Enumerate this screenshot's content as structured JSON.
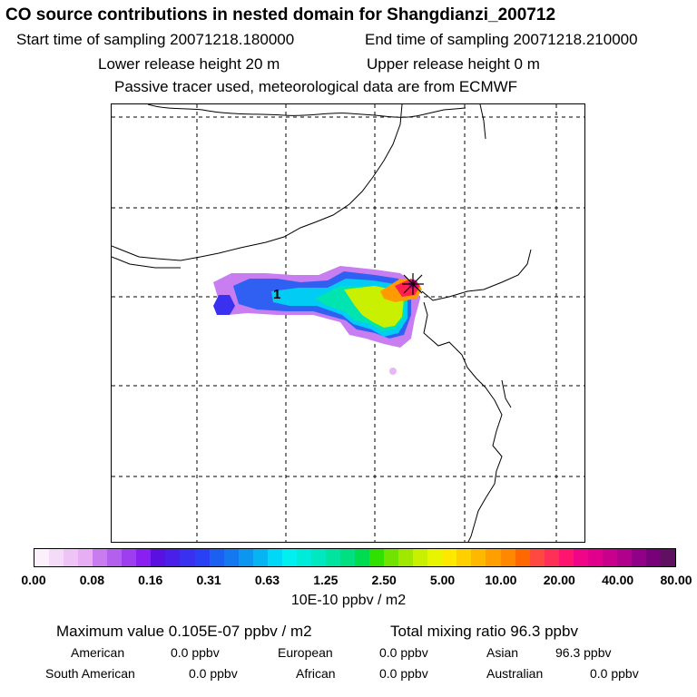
{
  "header": {
    "title": "CO  source contributions in nested domain for Shangdianzi_200712",
    "start": "Start time of sampling 20071218.180000",
    "end": "End time of sampling 20071218.210000",
    "lower": "Lower release height   20 m",
    "upper": "Upper release height    0 m",
    "passive": "Passive tracer used, meteorological data are from ECMWF"
  },
  "map": {
    "marker_label": "1"
  },
  "colorbar": {
    "ticks": [
      "0.00",
      "0.08",
      "0.16",
      "0.31",
      "0.63",
      "1.25",
      "2.50",
      "5.00",
      "10.00",
      "20.00",
      "40.00",
      "80.00"
    ],
    "colors": [
      "#fcf0fc",
      "#f4dcf8",
      "#eec4f6",
      "#e8aef4",
      "#c97cf0",
      "#b360ee",
      "#9d3ff0",
      "#8a1ff2",
      "#5a10e0",
      "#4a20e8",
      "#3a30f0",
      "#2a40f4",
      "#1c60f2",
      "#1478f0",
      "#0c96f0",
      "#06b4f4",
      "#00d8f8",
      "#00f0f0",
      "#00ecd8",
      "#00e8c0",
      "#00e4a0",
      "#00e080",
      "#00dc50",
      "#30e000",
      "#70e400",
      "#a0e800",
      "#c8f000",
      "#e8f400",
      "#ffe800",
      "#ffd000",
      "#ffb800",
      "#ffa000",
      "#ff8800",
      "#ff6800",
      "#ff4840",
      "#ff3058",
      "#ff1470",
      "#f00488",
      "#e0008c",
      "#c8008c",
      "#b0008c",
      "#900088",
      "#780078",
      "#601060"
    ],
    "unit": "10E-10 ppbv / m2"
  },
  "summary": {
    "maximum": "Maximum value  0.105E-07 ppbv / m2",
    "total": "Total mixing ratio      96.3 ppbv",
    "american_label": "American",
    "american_value": "0.0 ppbv",
    "european_label": "European",
    "european_value": "0.0 ppbv",
    "asian_label": "Asian",
    "asian_value": "96.3 ppbv",
    "south_american_label": "South American",
    "south_american_value": "0.0 ppbv",
    "african_label": "African",
    "african_value": "0.0 ppbv",
    "australian_label": "Australian",
    "australian_value": "0.0 ppbv"
  }
}
